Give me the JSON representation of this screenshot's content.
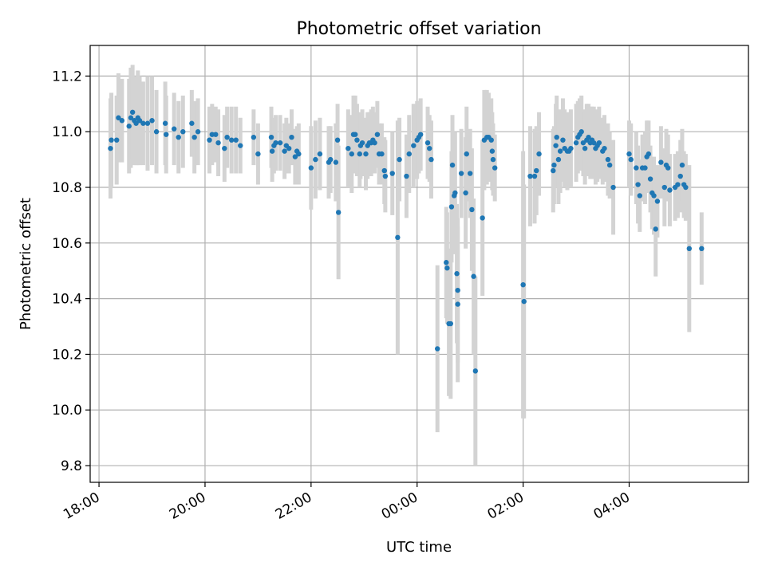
{
  "chart_data": {
    "type": "scatter",
    "title": "Photometric offset variation",
    "xlabel": "UTC time",
    "ylabel": "Photometric offset",
    "xlim": [
      "17:50",
      "06:15"
    ],
    "ylim": [
      9.74,
      11.31
    ],
    "x_ticks": [
      "18:00",
      "20:00",
      "22:00",
      "00:00",
      "02:00",
      "04:00"
    ],
    "y_ticks": [
      "9.8",
      "10.0",
      "10.2",
      "10.4",
      "10.6",
      "10.8",
      "11.0",
      "11.2"
    ],
    "grid": true,
    "colors": {
      "points": "#1f77b4",
      "errorbars": "#d3d3d3",
      "grid": "#b0b0b0"
    },
    "series": [
      {
        "columns": [
          "time",
          "offset",
          "error"
        ],
        "points": [
          [
            "18:13",
            10.94,
            0.18
          ],
          [
            "18:14",
            10.97,
            0.17
          ],
          [
            "18:20",
            10.97,
            0.16
          ],
          [
            "18:22",
            11.05,
            0.16
          ],
          [
            "18:26",
            11.04,
            0.15
          ],
          [
            "18:34",
            11.02,
            0.17
          ],
          [
            "18:36",
            11.05,
            0.18
          ],
          [
            "18:38",
            11.07,
            0.17
          ],
          [
            "18:40",
            11.04,
            0.16
          ],
          [
            "18:42",
            11.03,
            0.15
          ],
          [
            "18:44",
            11.05,
            0.17
          ],
          [
            "18:46",
            11.04,
            0.16
          ],
          [
            "18:50",
            11.03,
            0.15
          ],
          [
            "18:55",
            11.03,
            0.17
          ],
          [
            "19:00",
            11.04,
            0.16
          ],
          [
            "19:05",
            11.0,
            0.15
          ],
          [
            "19:15",
            11.03,
            0.15
          ],
          [
            "19:16",
            10.99,
            0.14
          ],
          [
            "19:25",
            11.01,
            0.13
          ],
          [
            "19:30",
            10.98,
            0.13
          ],
          [
            "19:35",
            11.0,
            0.13
          ],
          [
            "19:45",
            11.03,
            0.12
          ],
          [
            "19:48",
            10.98,
            0.13
          ],
          [
            "19:52",
            11.0,
            0.12
          ],
          [
            "20:05",
            10.97,
            0.12
          ],
          [
            "20:08",
            10.99,
            0.11
          ],
          [
            "20:12",
            10.99,
            0.1
          ],
          [
            "20:15",
            10.96,
            0.12
          ],
          [
            "20:22",
            10.94,
            0.12
          ],
          [
            "20:25",
            10.98,
            0.11
          ],
          [
            "20:30",
            10.97,
            0.12
          ],
          [
            "20:35",
            10.97,
            0.12
          ],
          [
            "20:40",
            10.95,
            0.1
          ],
          [
            "20:55",
            10.98,
            0.1
          ],
          [
            "21:00",
            10.92,
            0.11
          ],
          [
            "21:15",
            10.98,
            0.11
          ],
          [
            "21:16",
            10.93,
            0.11
          ],
          [
            "21:18",
            10.95,
            0.1
          ],
          [
            "21:20",
            10.96,
            0.1
          ],
          [
            "21:25",
            10.96,
            0.1
          ],
          [
            "21:30",
            10.93,
            0.1
          ],
          [
            "21:32",
            10.95,
            0.1
          ],
          [
            "21:35",
            10.94,
            0.09
          ],
          [
            "21:38",
            10.98,
            0.1
          ],
          [
            "21:42",
            10.91,
            0.1
          ],
          [
            "21:44",
            10.93,
            0.09
          ],
          [
            "21:46",
            10.92,
            0.11
          ],
          [
            "22:00",
            10.87,
            0.15
          ],
          [
            "22:05",
            10.9,
            0.14
          ],
          [
            "22:10",
            10.92,
            0.13
          ],
          [
            "22:20",
            10.89,
            0.13
          ],
          [
            "22:22",
            10.9,
            0.12
          ],
          [
            "22:28",
            10.89,
            0.14
          ],
          [
            "22:30",
            10.97,
            0.13
          ],
          [
            "22:31",
            10.71,
            0.24
          ],
          [
            "22:42",
            10.94,
            0.14
          ],
          [
            "22:46",
            10.92,
            0.14
          ],
          [
            "22:48",
            10.99,
            0.14
          ],
          [
            "22:50",
            10.99,
            0.14
          ],
          [
            "22:52",
            10.97,
            0.13
          ],
          [
            "22:55",
            10.92,
            0.12
          ],
          [
            "22:56",
            10.95,
            0.12
          ],
          [
            "22:58",
            10.96,
            0.12
          ],
          [
            "23:02",
            10.92,
            0.13
          ],
          [
            "23:04",
            10.95,
            0.12
          ],
          [
            "23:06",
            10.96,
            0.11
          ],
          [
            "23:08",
            10.96,
            0.12
          ],
          [
            "23:10",
            10.97,
            0.12
          ],
          [
            "23:12",
            10.96,
            0.11
          ],
          [
            "23:15",
            10.99,
            0.12
          ],
          [
            "23:17",
            10.92,
            0.11
          ],
          [
            "23:20",
            10.92,
            0.11
          ],
          [
            "23:23",
            10.86,
            0.12
          ],
          [
            "23:24",
            10.84,
            0.13
          ],
          [
            "23:32",
            10.85,
            0.15
          ],
          [
            "23:38",
            10.62,
            0.42
          ],
          [
            "23:40",
            10.9,
            0.15
          ],
          [
            "23:48",
            10.84,
            0.15
          ],
          [
            "23:51",
            10.92,
            0.14
          ],
          [
            "23:56",
            10.95,
            0.15
          ],
          [
            "24:00",
            10.97,
            0.14
          ],
          [
            "24:02",
            10.98,
            0.13
          ],
          [
            "24:04",
            10.99,
            0.13
          ],
          [
            "24:12",
            10.96,
            0.13
          ],
          [
            "24:14",
            10.94,
            0.12
          ],
          [
            "24:16",
            10.9,
            0.14
          ],
          [
            "24:23",
            10.22,
            0.3
          ],
          [
            "24:33",
            10.53,
            0.2
          ],
          [
            "24:34",
            10.51,
            0.2
          ],
          [
            "24:36",
            10.31,
            0.26
          ],
          [
            "24:38",
            10.31,
            0.27
          ],
          [
            "24:39",
            10.73,
            0.2
          ],
          [
            "24:40",
            10.88,
            0.18
          ],
          [
            "24:42",
            10.77,
            0.21
          ],
          [
            "24:43",
            10.78,
            0.22
          ],
          [
            "24:45",
            10.49,
            0.25
          ],
          [
            "24:46",
            10.38,
            0.28
          ],
          [
            "24:46",
            10.43,
            0.26
          ],
          [
            "24:50",
            10.85,
            0.16
          ],
          [
            "24:55",
            10.78,
            0.2
          ],
          [
            "24:56",
            10.92,
            0.17
          ],
          [
            "25:00",
            10.85,
            0.16
          ],
          [
            "25:02",
            10.72,
            0.22
          ],
          [
            "25:04",
            10.48,
            0.28
          ],
          [
            "25:06",
            10.14,
            0.34
          ],
          [
            "25:14",
            10.69,
            0.28
          ],
          [
            "25:16",
            10.97,
            0.18
          ],
          [
            "25:19",
            10.98,
            0.17
          ],
          [
            "25:21",
            10.98,
            0.16
          ],
          [
            "25:24",
            10.97,
            0.15
          ],
          [
            "25:25",
            10.93,
            0.14
          ],
          [
            "25:26",
            10.9,
            0.13
          ],
          [
            "25:28",
            10.87,
            0.12
          ],
          [
            "26:00",
            10.45,
            0.48
          ],
          [
            "26:01",
            10.39,
            0.42
          ],
          [
            "26:08",
            10.84,
            0.18
          ],
          [
            "26:13",
            10.84,
            0.17
          ],
          [
            "26:15",
            10.86,
            0.16
          ],
          [
            "26:18",
            10.92,
            0.15
          ],
          [
            "26:34",
            10.86,
            0.15
          ],
          [
            "26:35",
            10.88,
            0.14
          ],
          [
            "26:37",
            10.95,
            0.15
          ],
          [
            "26:38",
            10.98,
            0.15
          ],
          [
            "26:40",
            10.9,
            0.16
          ],
          [
            "26:42",
            10.93,
            0.15
          ],
          [
            "26:45",
            10.97,
            0.15
          ],
          [
            "26:47",
            10.94,
            0.14
          ],
          [
            "26:50",
            10.93,
            0.14
          ],
          [
            "26:52",
            10.93,
            0.13
          ],
          [
            "26:54",
            10.94,
            0.14
          ],
          [
            "27:00",
            10.96,
            0.14
          ],
          [
            "27:02",
            10.98,
            0.13
          ],
          [
            "27:04",
            10.99,
            0.13
          ],
          [
            "27:06",
            11.0,
            0.13
          ],
          [
            "27:08",
            10.96,
            0.12
          ],
          [
            "27:10",
            10.94,
            0.13
          ],
          [
            "27:12",
            10.97,
            0.13
          ],
          [
            "27:14",
            10.98,
            0.12
          ],
          [
            "27:16",
            10.96,
            0.13
          ],
          [
            "27:18",
            10.97,
            0.12
          ],
          [
            "27:20",
            10.96,
            0.13
          ],
          [
            "27:22",
            10.94,
            0.13
          ],
          [
            "27:24",
            10.95,
            0.13
          ],
          [
            "27:26",
            10.96,
            0.13
          ],
          [
            "27:30",
            10.93,
            0.12
          ],
          [
            "27:32",
            10.94,
            0.12
          ],
          [
            "27:36",
            10.9,
            0.13
          ],
          [
            "27:38",
            10.88,
            0.12
          ],
          [
            "27:42",
            10.8,
            0.17
          ],
          [
            "28:00",
            10.92,
            0.12
          ],
          [
            "28:02",
            10.9,
            0.13
          ],
          [
            "28:08",
            10.87,
            0.13
          ],
          [
            "28:10",
            10.81,
            0.14
          ],
          [
            "28:12",
            10.77,
            0.13
          ],
          [
            "28:15",
            10.87,
            0.12
          ],
          [
            "28:18",
            10.87,
            0.13
          ],
          [
            "28:20",
            10.91,
            0.13
          ],
          [
            "28:22",
            10.92,
            0.12
          ],
          [
            "28:24",
            10.83,
            0.12
          ],
          [
            "28:26",
            10.78,
            0.13
          ],
          [
            "28:28",
            10.77,
            0.14
          ],
          [
            "28:30",
            10.65,
            0.17
          ],
          [
            "28:32",
            10.75,
            0.13
          ],
          [
            "28:36",
            10.89,
            0.13
          ],
          [
            "28:40",
            10.8,
            0.14
          ],
          [
            "28:42",
            10.88,
            0.13
          ],
          [
            "28:44",
            10.87,
            0.12
          ],
          [
            "28:46",
            10.79,
            0.13
          ],
          [
            "28:52",
            10.8,
            0.12
          ],
          [
            "28:55",
            10.81,
            0.12
          ],
          [
            "28:58",
            10.84,
            0.13
          ],
          [
            "29:00",
            10.88,
            0.13
          ],
          [
            "29:02",
            10.81,
            0.12
          ],
          [
            "29:04",
            10.8,
            0.12
          ],
          [
            "29:08",
            10.58,
            0.3
          ],
          [
            "29:22",
            10.58,
            0.13
          ]
        ]
      }
    ]
  }
}
